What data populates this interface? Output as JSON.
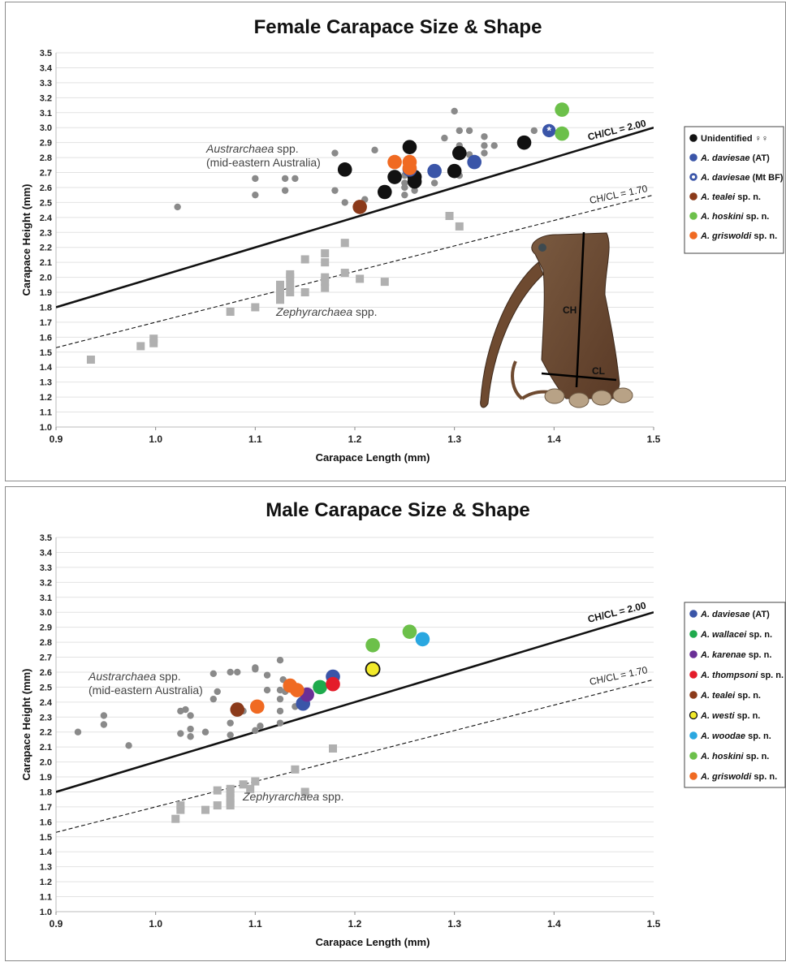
{
  "colors": {
    "unidentified": "#111111",
    "daviesae": "#3a55a8",
    "tealei": "#8b3a1a",
    "hoskini": "#6cc04a",
    "griswoldi": "#f06a22",
    "wallacei": "#1faa4d",
    "karenae": "#6a2f96",
    "thompsoni": "#e41c2a",
    "westi": "#f2ea2a",
    "woodae": "#2aa7e0",
    "austr": "#8a8a8a",
    "zeph": "#b0b0b0"
  },
  "chart_data": [
    {
      "type": "scatter",
      "title": "Female Carapace Size & Shape",
      "xlabel": "Carapace Length (mm)",
      "ylabel": "Carapace Height (mm)",
      "xlim": [
        0.9,
        1.5
      ],
      "ylim": [
        1.0,
        3.5
      ],
      "xticks": [
        "0.9",
        "1.0",
        "1.1",
        "1.2",
        "1.3",
        "1.4",
        "1.5"
      ],
      "yticks": [
        "1.0",
        "1.1",
        "1.2",
        "1.3",
        "1.4",
        "1.5",
        "1.6",
        "1.7",
        "1.8",
        "1.9",
        "2.0",
        "2.1",
        "2.2",
        "2.3",
        "2.4",
        "2.5",
        "2.6",
        "2.7",
        "2.8",
        "2.9",
        "3.0",
        "3.1",
        "3.2",
        "3.3",
        "3.4",
        "3.5"
      ],
      "grid": true,
      "legend_position": "right",
      "ratio_lines": [
        {
          "label": "CH/CL = 2.00",
          "slope": 2.0,
          "style": "solid"
        },
        {
          "label": "CH/CL = 1.70",
          "slope": 1.7,
          "style": "dashed"
        }
      ],
      "annotations": [
        {
          "italic": "Austrarchaea",
          "rest": " spp.",
          "line2": "(mid-eastern Australia)"
        },
        {
          "italic": "Zephyrarchaea",
          "rest": " spp.",
          "line2": ""
        }
      ],
      "inset": {
        "label_ch": "CH",
        "label_cl": "CL"
      },
      "series": [
        {
          "key": "austr",
          "marker": "small-dot",
          "points": [
            [
              1.022,
              2.47
            ],
            [
              1.1,
              2.66
            ],
            [
              1.1,
              2.55
            ],
            [
              1.13,
              2.58
            ],
            [
              1.13,
              2.66
            ],
            [
              1.14,
              2.66
            ],
            [
              1.18,
              2.58
            ],
            [
              1.18,
              2.83
            ],
            [
              1.19,
              2.5
            ],
            [
              1.22,
              2.85
            ],
            [
              1.21,
              2.52
            ],
            [
              1.25,
              2.55
            ],
            [
              1.25,
              2.6
            ],
            [
              1.25,
              2.63
            ],
            [
              1.26,
              2.66
            ],
            [
              1.28,
              2.63
            ],
            [
              1.29,
              2.93
            ],
            [
              1.3,
              3.11
            ],
            [
              1.3,
              2.7
            ],
            [
              1.305,
              2.98
            ],
            [
              1.305,
              2.88
            ],
            [
              1.305,
              2.68
            ],
            [
              1.315,
              2.98
            ],
            [
              1.315,
              2.82
            ],
            [
              1.33,
              2.94
            ],
            [
              1.33,
              2.88
            ],
            [
              1.33,
              2.83
            ],
            [
              1.34,
              2.88
            ],
            [
              1.38,
              2.98
            ],
            [
              1.25,
              2.68
            ],
            [
              1.26,
              2.58
            ]
          ]
        },
        {
          "key": "zeph",
          "marker": "square",
          "points": [
            [
              0.935,
              1.45
            ],
            [
              0.985,
              1.54
            ],
            [
              0.998,
              1.56
            ],
            [
              0.998,
              1.59
            ],
            [
              1.075,
              1.77
            ],
            [
              1.1,
              1.8
            ],
            [
              1.125,
              1.85
            ],
            [
              1.125,
              1.9
            ],
            [
              1.125,
              1.95
            ],
            [
              1.135,
              1.9
            ],
            [
              1.135,
              1.95
            ],
            [
              1.135,
              2.0
            ],
            [
              1.135,
              2.02
            ],
            [
              1.15,
              1.9
            ],
            [
              1.15,
              2.12
            ],
            [
              1.17,
              1.93
            ],
            [
              1.17,
              1.97
            ],
            [
              1.17,
              2.0
            ],
            [
              1.17,
              2.1
            ],
            [
              1.17,
              2.16
            ],
            [
              1.19,
              2.03
            ],
            [
              1.19,
              2.23
            ],
            [
              1.205,
              1.99
            ],
            [
              1.23,
              1.97
            ],
            [
              1.295,
              2.41
            ],
            [
              1.305,
              2.34
            ]
          ]
        }
      ],
      "legend": [
        {
          "key": "unidentified",
          "italic": "",
          "text": "Unidentified ♀♀",
          "marker": "dot",
          "points": [
            [
              1.19,
              2.72
            ],
            [
              1.23,
              2.57
            ],
            [
              1.24,
              2.67
            ],
            [
              1.255,
              2.87
            ],
            [
              1.26,
              2.67
            ],
            [
              1.26,
              2.64
            ],
            [
              1.3,
              2.71
            ],
            [
              1.305,
              2.83
            ],
            [
              1.37,
              2.9
            ]
          ]
        },
        {
          "key": "daviesae",
          "italic": "A. daviesae",
          "text": " (AT)",
          "marker": "dot",
          "points": [
            [
              1.255,
              2.72
            ],
            [
              1.28,
              2.71
            ],
            [
              1.32,
              2.77
            ]
          ]
        },
        {
          "key": "daviesae",
          "italic": "A. daviesae",
          "text": " (Mt BF)",
          "marker": "star-dot",
          "points": [
            [
              1.395,
              2.98
            ]
          ]
        },
        {
          "key": "tealei",
          "italic": "A. tealei",
          "text": " sp. n.",
          "marker": "dot",
          "points": [
            [
              1.205,
              2.47
            ]
          ]
        },
        {
          "key": "hoskini",
          "italic": "A. hoskini",
          "text": " sp. n.",
          "marker": "dot",
          "points": [
            [
              1.408,
              3.12
            ],
            [
              1.408,
              2.96
            ]
          ]
        },
        {
          "key": "griswoldi",
          "italic": "A. griswoldi",
          "text": " sp. n.",
          "marker": "dot",
          "points": [
            [
              1.24,
              2.77
            ],
            [
              1.255,
              2.77
            ],
            [
              1.255,
              2.73
            ]
          ]
        }
      ]
    },
    {
      "type": "scatter",
      "title": "Male Carapace Size & Shape",
      "xlabel": "Carapace Length (mm)",
      "ylabel": "Carapace Height (mm)",
      "xlim": [
        0.9,
        1.5
      ],
      "ylim": [
        1.0,
        3.5
      ],
      "xticks": [
        "0.9",
        "1.0",
        "1.1",
        "1.2",
        "1.3",
        "1.4",
        "1.5"
      ],
      "yticks": [
        "1.0",
        "1.1",
        "1.2",
        "1.3",
        "1.4",
        "1.5",
        "1.6",
        "1.7",
        "1.8",
        "1.9",
        "2.0",
        "2.1",
        "2.2",
        "2.3",
        "2.4",
        "2.5",
        "2.6",
        "2.7",
        "2.8",
        "2.9",
        "3.0",
        "3.1",
        "3.2",
        "3.3",
        "3.4",
        "3.5"
      ],
      "grid": true,
      "legend_position": "right",
      "ratio_lines": [
        {
          "label": "CH/CL = 2.00",
          "slope": 2.0,
          "style": "solid"
        },
        {
          "label": "CH/CL = 1.70",
          "slope": 1.7,
          "style": "dashed"
        }
      ],
      "annotations": [
        {
          "italic": "Austrarchaea",
          "rest": " spp.",
          "line2": "(mid-eastern Australia)"
        },
        {
          "italic": "Zephyrarchaea",
          "rest": " spp.",
          "line2": ""
        }
      ],
      "series": [
        {
          "key": "austr",
          "marker": "small-dot",
          "points": [
            [
              0.922,
              2.2
            ],
            [
              0.948,
              2.31
            ],
            [
              0.948,
              2.25
            ],
            [
              0.973,
              2.11
            ],
            [
              1.025,
              2.34
            ],
            [
              1.025,
              2.19
            ],
            [
              1.03,
              2.35
            ],
            [
              1.035,
              2.31
            ],
            [
              1.035,
              2.22
            ],
            [
              1.035,
              2.17
            ],
            [
              1.05,
              2.2
            ],
            [
              1.058,
              2.59
            ],
            [
              1.058,
              2.42
            ],
            [
              1.062,
              2.47
            ],
            [
              1.075,
              2.6
            ],
            [
              1.075,
              2.26
            ],
            [
              1.075,
              2.18
            ],
            [
              1.082,
              2.6
            ],
            [
              1.088,
              2.34
            ],
            [
              1.1,
              2.63
            ],
            [
              1.1,
              2.62
            ],
            [
              1.1,
              2.21
            ],
            [
              1.105,
              2.24
            ],
            [
              1.112,
              2.58
            ],
            [
              1.112,
              2.48
            ],
            [
              1.125,
              2.68
            ],
            [
              1.125,
              2.48
            ],
            [
              1.125,
              2.42
            ],
            [
              1.125,
              2.34
            ],
            [
              1.125,
              2.26
            ],
            [
              1.128,
              2.55
            ],
            [
              1.13,
              2.47
            ],
            [
              1.14,
              2.37
            ]
          ]
        },
        {
          "key": "zeph",
          "marker": "square",
          "points": [
            [
              1.02,
              1.62
            ],
            [
              1.025,
              1.68
            ],
            [
              1.025,
              1.71
            ],
            [
              1.05,
              1.68
            ],
            [
              1.062,
              1.71
            ],
            [
              1.062,
              1.81
            ],
            [
              1.075,
              1.71
            ],
            [
              1.075,
              1.73
            ],
            [
              1.075,
              1.76
            ],
            [
              1.075,
              1.79
            ],
            [
              1.075,
              1.82
            ],
            [
              1.088,
              1.85
            ],
            [
              1.095,
              1.82
            ],
            [
              1.1,
              1.87
            ],
            [
              1.14,
              1.95
            ],
            [
              1.15,
              1.8
            ],
            [
              1.178,
              2.09
            ]
          ]
        }
      ],
      "legend": [
        {
          "key": "daviesae",
          "italic": "A. daviesae",
          "text": " (AT)",
          "marker": "dot",
          "points": [
            [
              1.178,
              2.57
            ],
            [
              1.148,
              2.39
            ]
          ]
        },
        {
          "key": "wallacei",
          "italic": "A. wallacei",
          "text": " sp. n.",
          "marker": "dot",
          "points": [
            [
              1.165,
              2.5
            ]
          ]
        },
        {
          "key": "karenae",
          "italic": "A. karenae",
          "text": " sp. n.",
          "marker": "dot",
          "points": [
            [
              1.152,
              2.45
            ]
          ]
        },
        {
          "key": "thompsoni",
          "italic": "A. thompsoni",
          "text": " sp. n.",
          "marker": "dot",
          "points": [
            [
              1.178,
              2.52
            ]
          ]
        },
        {
          "key": "tealei",
          "italic": "A. tealei",
          "text": " sp. n.",
          "marker": "dot",
          "points": [
            [
              1.082,
              2.35
            ]
          ]
        },
        {
          "key": "westi",
          "italic": "A. westi",
          "text": " sp. n.",
          "marker": "ring-dot",
          "points": [
            [
              1.218,
              2.62
            ]
          ]
        },
        {
          "key": "woodae",
          "italic": "A. woodae",
          "text": " sp. n.",
          "marker": "dot",
          "points": [
            [
              1.268,
              2.82
            ]
          ]
        },
        {
          "key": "hoskini",
          "italic": "A. hoskini",
          "text": " sp. n.",
          "marker": "dot",
          "points": [
            [
              1.218,
              2.78
            ],
            [
              1.255,
              2.87
            ]
          ]
        },
        {
          "key": "griswoldi",
          "italic": "A. griswoldi",
          "text": " sp. n.",
          "marker": "dot",
          "points": [
            [
              1.135,
              2.51
            ],
            [
              1.142,
              2.48
            ],
            [
              1.102,
              2.37
            ]
          ]
        }
      ]
    }
  ]
}
